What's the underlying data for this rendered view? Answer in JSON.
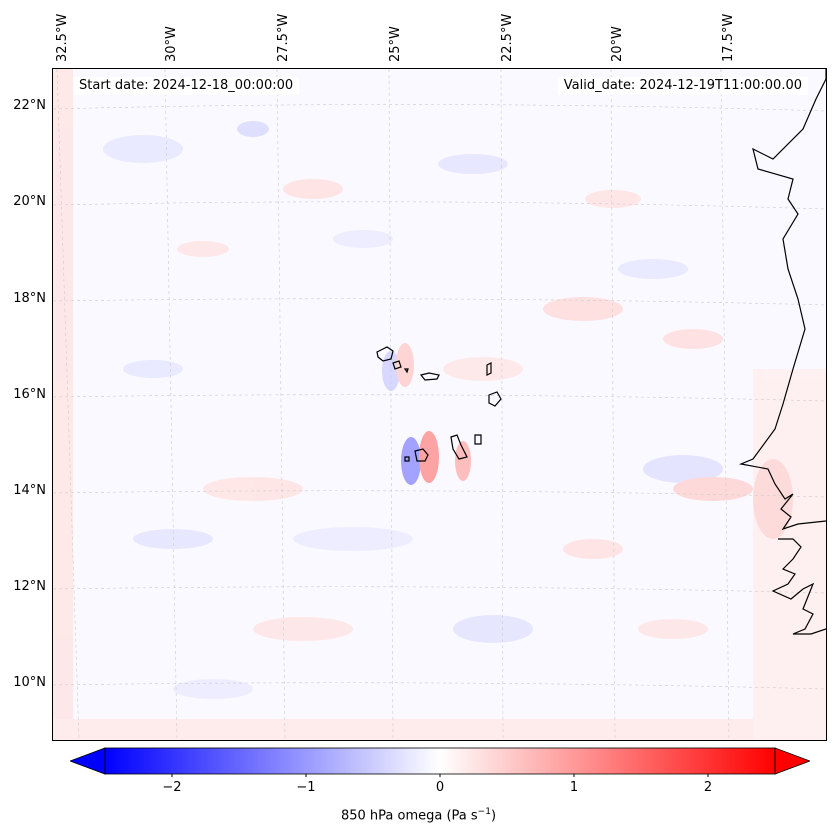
{
  "map": {
    "start_date_text": "Start date: 2024-12-18_00:00:00",
    "valid_date_text": "Valid_date: 2024-12-19T11:00:00.00",
    "background_color": "#f9f9ff",
    "coastline_color": "#000000",
    "gridline_color": "#cccccc",
    "longitude_labels": [
      "32.5°W",
      "30°W",
      "27.5°W",
      "25°W",
      "22.5°W",
      "20°W",
      "17.5°W"
    ],
    "latitude_labels": [
      "22°N",
      "20°N",
      "18°N",
      "16°N",
      "14°N",
      "12°N",
      "10°N"
    ]
  },
  "colorbar": {
    "label_main": "850 hPa omega (Pa s",
    "label_sup": "−1",
    "label_end": ")",
    "tick_labels": [
      "−2",
      "−1",
      "0",
      "1",
      "2"
    ],
    "tick_values": [
      -2,
      -1,
      0,
      1,
      2
    ],
    "range": [
      -2.5,
      2.5
    ],
    "min_color": "#0000ff",
    "mid_color": "#ffffff",
    "max_color": "#ff0000"
  }
}
